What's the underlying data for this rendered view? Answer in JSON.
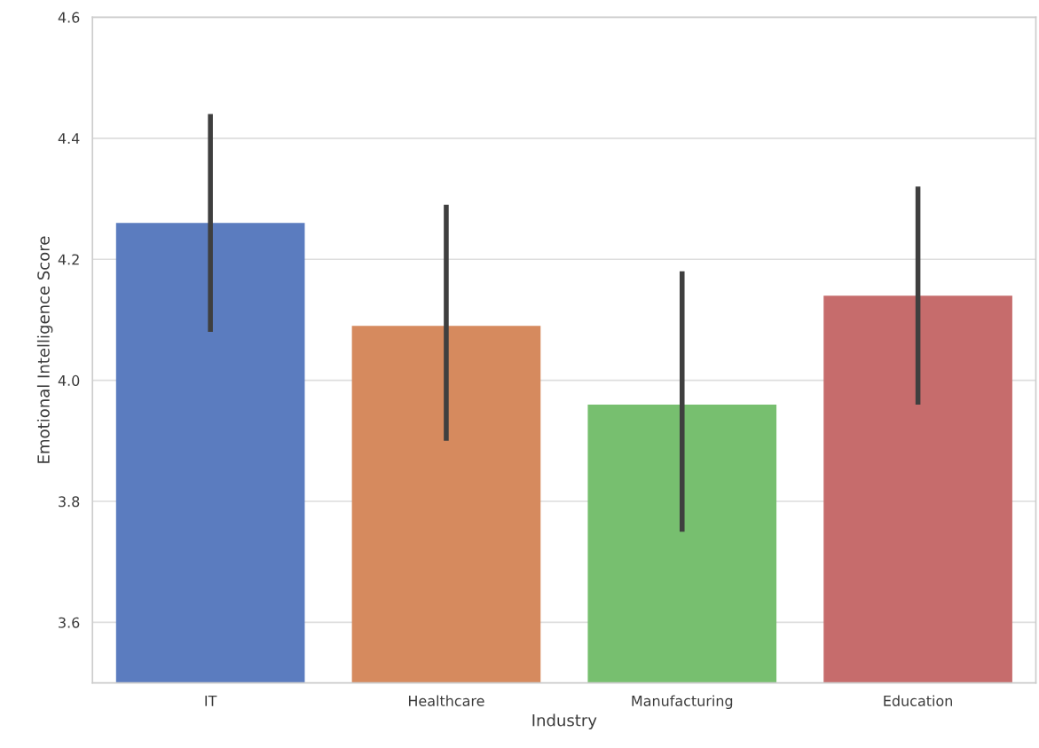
{
  "chart_data": {
    "type": "bar",
    "xlabel": "Industry",
    "ylabel": "Emotional Intelligence Score",
    "categories": [
      "IT",
      "Healthcare",
      "Manufacturing",
      "Education"
    ],
    "values": [
      4.26,
      4.09,
      3.96,
      4.14
    ],
    "colors": [
      "#5b7cbf",
      "#d68a5e",
      "#77bf6f",
      "#c66c6c"
    ],
    "errors": [
      [
        4.08,
        4.44
      ],
      [
        3.9,
        4.29
      ],
      [
        3.75,
        4.18
      ],
      [
        3.96,
        4.32
      ]
    ],
    "ylim": [
      3.5,
      4.6
    ],
    "yticks": [
      3.6,
      3.8,
      {
        "value": 4.0,
        "label": "4.0"
      },
      4.2,
      4.4,
      4.6
    ],
    "grid": "y"
  }
}
